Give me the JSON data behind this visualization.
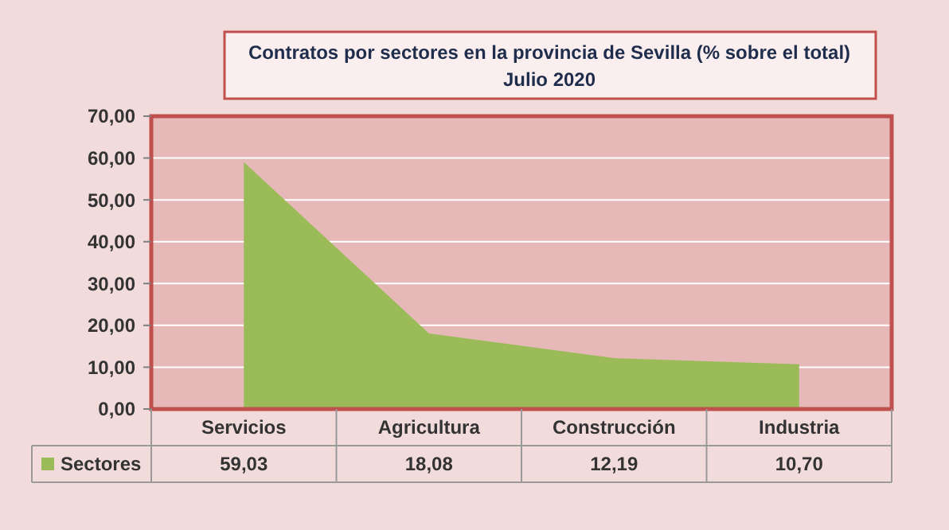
{
  "chart_data": {
    "type": "area",
    "title": "Contratos por sectores en la provincia de Sevilla (% sobre el total)",
    "subtitle": "Julio 2020",
    "categories": [
      "Servicios",
      "Agricultura",
      "Construcción",
      "Industria"
    ],
    "series": [
      {
        "name": "Sectores",
        "color": "#9bbb59",
        "values": [
          59.03,
          18.08,
          12.19,
          10.7
        ],
        "value_labels": [
          "59,03",
          "18,08",
          "12,19",
          "10,70"
        ]
      }
    ],
    "ylim": [
      0,
      70
    ],
    "yticks": [
      {
        "value": 0,
        "label": "0,00"
      },
      {
        "value": 10,
        "label": "10,00"
      },
      {
        "value": 20,
        "label": "20,00"
      },
      {
        "value": 30,
        "label": "30,00"
      },
      {
        "value": 40,
        "label": "40,00"
      },
      {
        "value": 50,
        "label": "50,00"
      },
      {
        "value": 60,
        "label": "60,00"
      },
      {
        "value": 70,
        "label": "70,00"
      }
    ],
    "grid": "y",
    "legend": "bottom"
  }
}
